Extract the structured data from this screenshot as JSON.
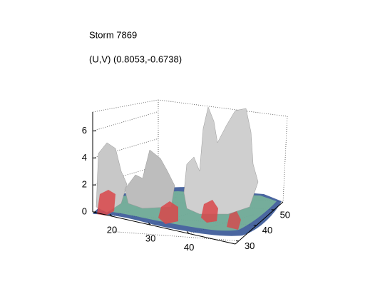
{
  "chart_data": {
    "type": "surface3d",
    "title": "Storm 7869",
    "subtitle": "(U,V) (0.8053,-0.6738)",
    "xlim": [
      15,
      52
    ],
    "xticks": [
      20,
      30,
      40
    ],
    "ylim": [
      28,
      55
    ],
    "yticks": [
      30,
      40,
      50
    ],
    "zlim": [
      0,
      7.4
    ],
    "zticks": [
      0,
      2,
      4,
      6
    ],
    "grid": true
  }
}
